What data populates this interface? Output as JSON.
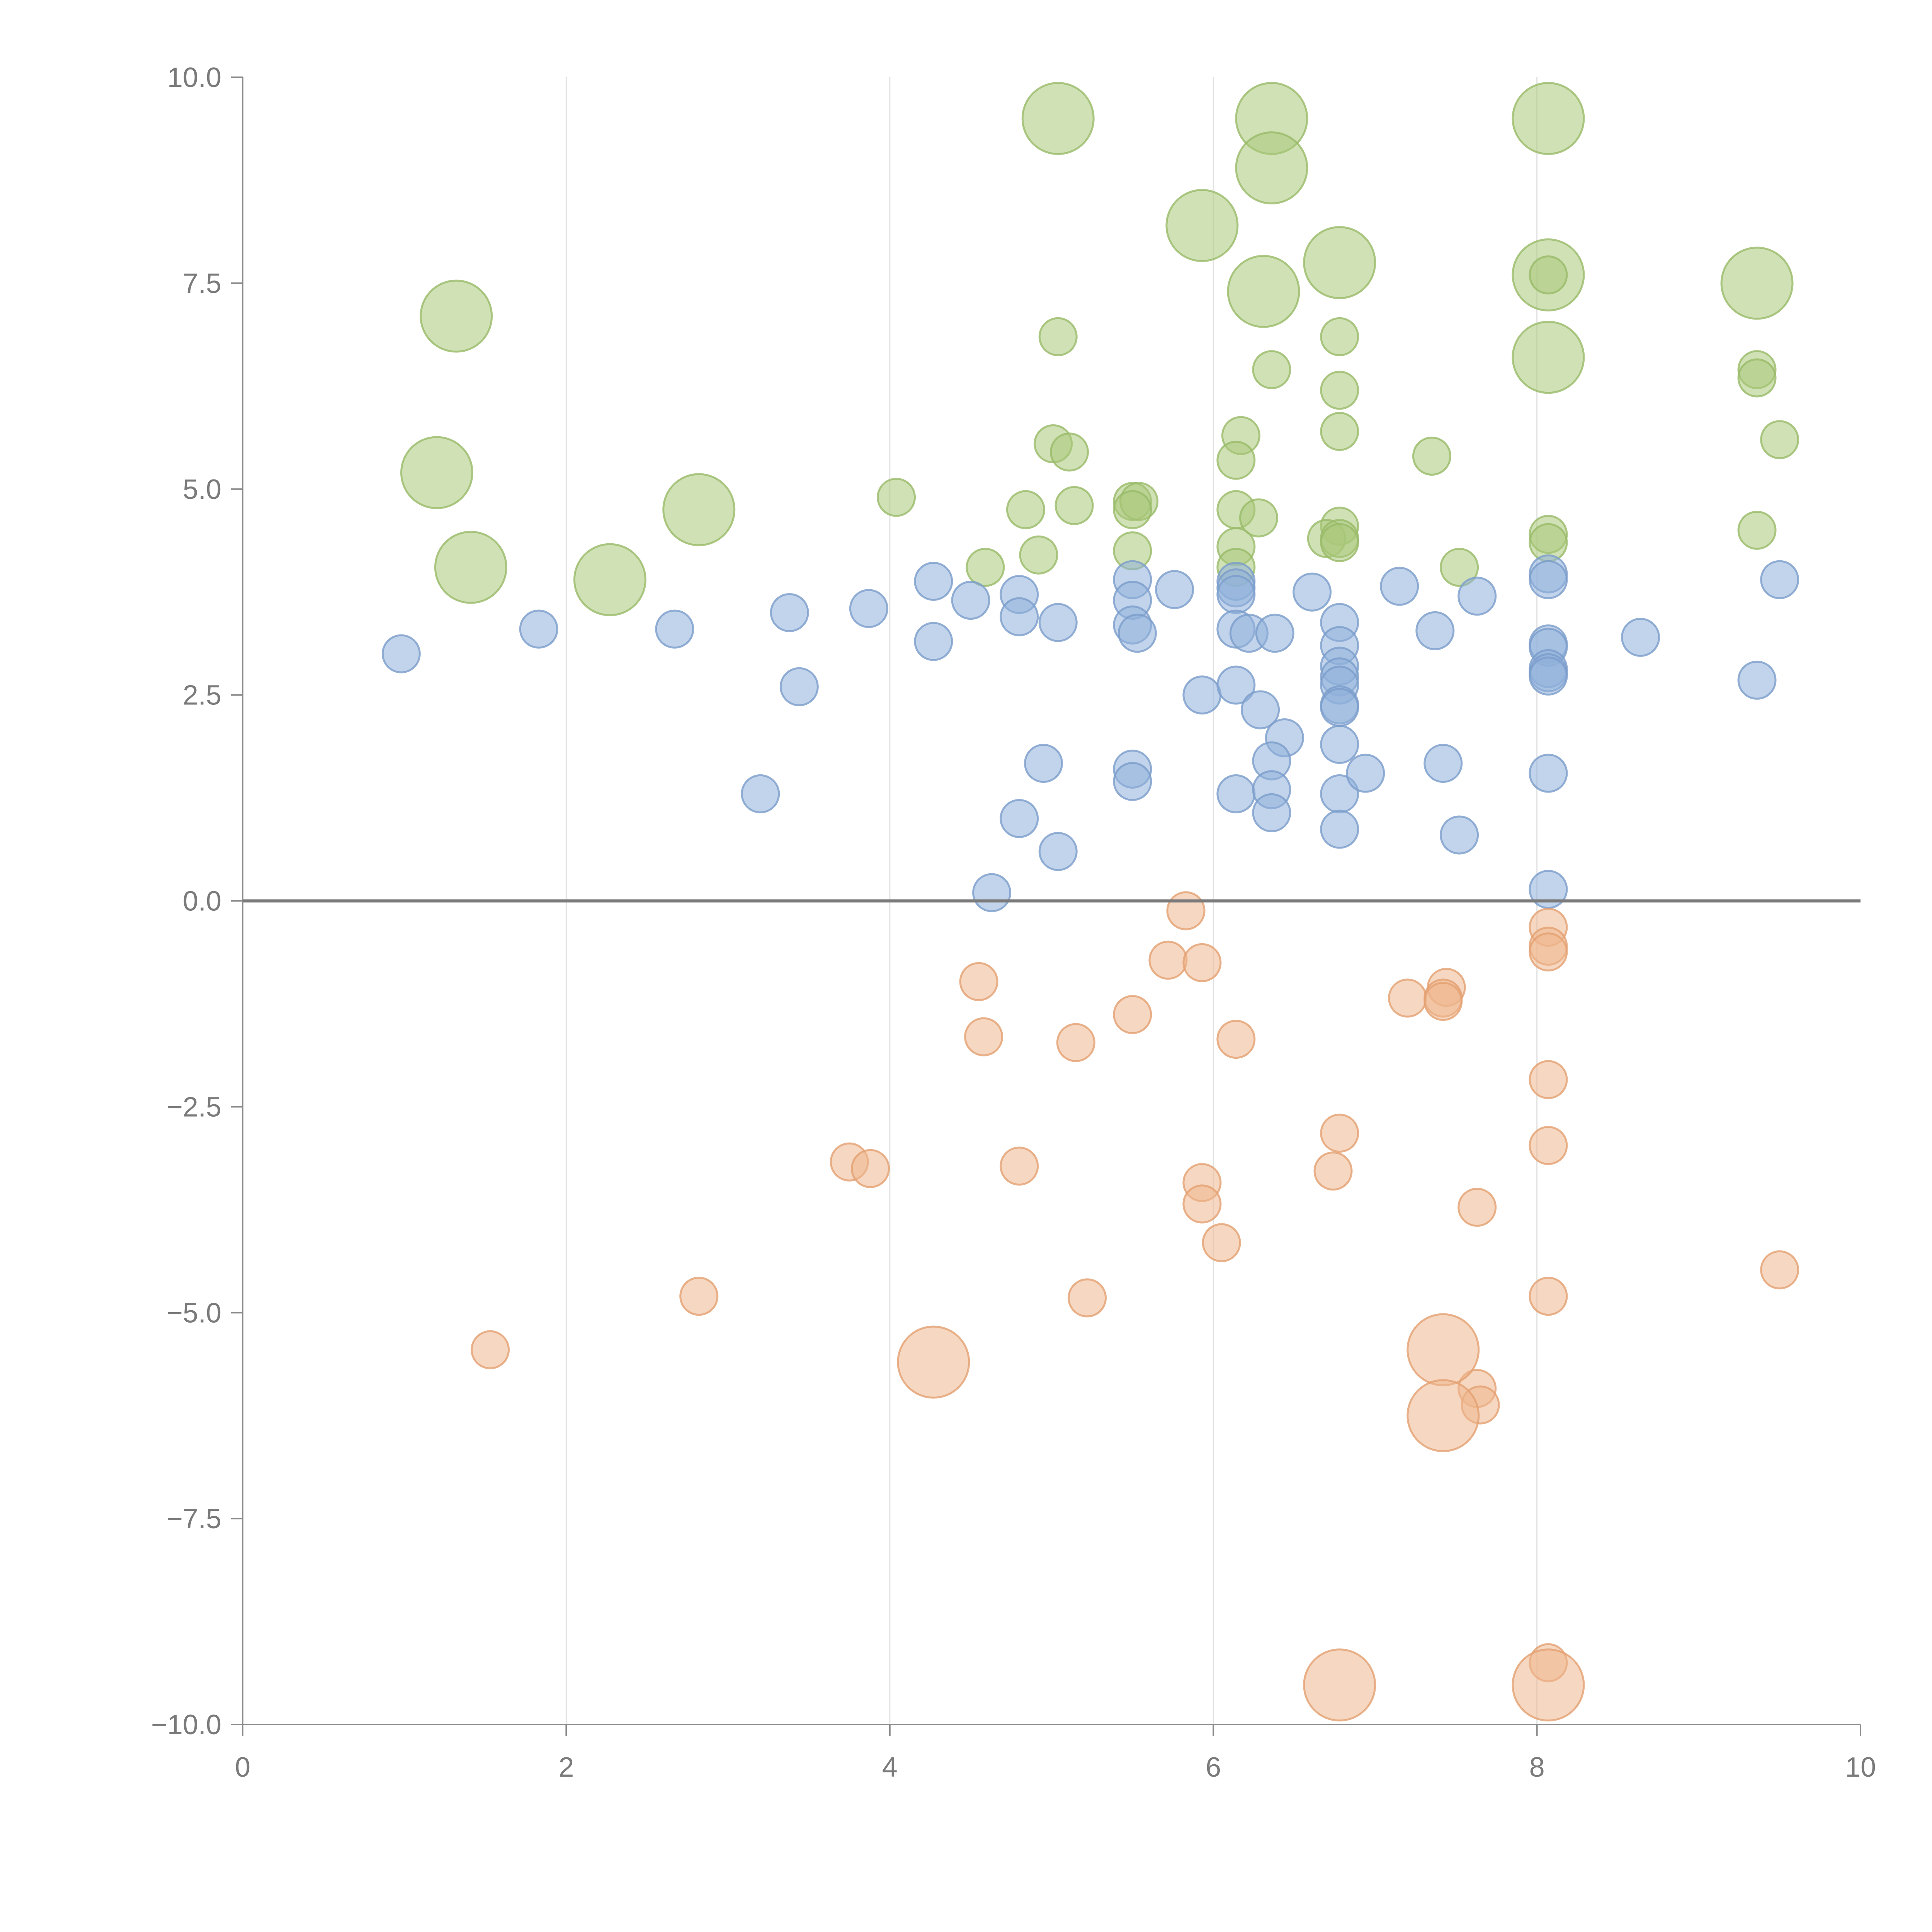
{
  "chart_data": {
    "type": "scatter",
    "title": "",
    "xlabel": "",
    "ylabel": "",
    "xlim": [
      0,
      10
    ],
    "ylim": [
      -10,
      10
    ],
    "grid": {
      "x": true,
      "y": false
    },
    "legend": null,
    "reference_line": {
      "y": 0
    },
    "x_ticks": [
      "0",
      "2",
      "4",
      "6",
      "8",
      "10"
    ],
    "x_tick_values": [
      0,
      2,
      4,
      6,
      8,
      10
    ],
    "y_ticks": [
      "10.0",
      "7.5",
      "5.0",
      "2.5",
      "0.0",
      "−2.5",
      "−5.0",
      "−7.5",
      "−10.0"
    ],
    "y_tick_values": [
      10,
      7.5,
      5,
      2.5,
      0,
      -2.5,
      -5,
      -7.5,
      -10
    ],
    "series": [
      {
        "name": "green",
        "color": "#a9c97a",
        "stroke": "#98ba68",
        "points": [
          {
            "x": 5.04,
            "y": 9.5,
            "size": "large"
          },
          {
            "x": 6.36,
            "y": 9.5,
            "size": "large"
          },
          {
            "x": 8.07,
            "y": 9.5,
            "size": "large"
          },
          {
            "x": 6.36,
            "y": 8.9,
            "size": "large"
          },
          {
            "x": 5.93,
            "y": 8.2,
            "size": "large"
          },
          {
            "x": 6.78,
            "y": 7.75,
            "size": "large"
          },
          {
            "x": 8.07,
            "y": 7.6,
            "size": "large"
          },
          {
            "x": 9.36,
            "y": 7.5,
            "size": "large"
          },
          {
            "x": 6.31,
            "y": 7.4,
            "size": "large"
          },
          {
            "x": 1.32,
            "y": 7.1,
            "size": "large"
          },
          {
            "x": 8.07,
            "y": 6.6,
            "size": "large"
          },
          {
            "x": 1.2,
            "y": 5.2,
            "size": "large"
          },
          {
            "x": 2.82,
            "y": 4.75,
            "size": "large"
          },
          {
            "x": 1.41,
            "y": 4.05,
            "size": "large"
          },
          {
            "x": 2.27,
            "y": 3.9,
            "size": "large"
          },
          {
            "x": 8.07,
            "y": 7.6,
            "size": "small"
          },
          {
            "x": 5.04,
            "y": 6.85,
            "size": "small"
          },
          {
            "x": 6.78,
            "y": 6.85,
            "size": "small"
          },
          {
            "x": 6.36,
            "y": 6.45,
            "size": "small"
          },
          {
            "x": 9.36,
            "y": 6.45,
            "size": "small"
          },
          {
            "x": 9.36,
            "y": 6.35,
            "size": "small"
          },
          {
            "x": 6.78,
            "y": 6.2,
            "size": "small"
          },
          {
            "x": 6.78,
            "y": 5.7,
            "size": "small"
          },
          {
            "x": 6.17,
            "y": 5.65,
            "size": "small"
          },
          {
            "x": 9.5,
            "y": 5.6,
            "size": "small"
          },
          {
            "x": 5.01,
            "y": 5.55,
            "size": "small"
          },
          {
            "x": 5.11,
            "y": 5.45,
            "size": "small"
          },
          {
            "x": 7.35,
            "y": 5.4,
            "size": "small"
          },
          {
            "x": 6.14,
            "y": 5.35,
            "size": "small"
          },
          {
            "x": 4.04,
            "y": 4.9,
            "size": "small"
          },
          {
            "x": 5.5,
            "y": 4.85,
            "size": "small"
          },
          {
            "x": 5.54,
            "y": 4.85,
            "size": "small"
          },
          {
            "x": 5.14,
            "y": 4.8,
            "size": "small"
          },
          {
            "x": 4.84,
            "y": 4.75,
            "size": "small"
          },
          {
            "x": 5.5,
            "y": 4.75,
            "size": "small"
          },
          {
            "x": 6.14,
            "y": 4.75,
            "size": "small"
          },
          {
            "x": 6.28,
            "y": 4.65,
            "size": "small"
          },
          {
            "x": 6.78,
            "y": 4.55,
            "size": "small"
          },
          {
            "x": 9.36,
            "y": 4.5,
            "size": "small"
          },
          {
            "x": 8.07,
            "y": 4.45,
            "size": "small"
          },
          {
            "x": 6.7,
            "y": 4.4,
            "size": "small"
          },
          {
            "x": 6.78,
            "y": 4.4,
            "size": "small"
          },
          {
            "x": 8.07,
            "y": 4.35,
            "size": "small"
          },
          {
            "x": 6.78,
            "y": 4.35,
            "size": "small"
          },
          {
            "x": 6.14,
            "y": 4.3,
            "size": "small"
          },
          {
            "x": 5.5,
            "y": 4.25,
            "size": "small"
          },
          {
            "x": 4.92,
            "y": 4.2,
            "size": "small"
          },
          {
            "x": 4.59,
            "y": 4.05,
            "size": "small"
          },
          {
            "x": 6.14,
            "y": 4.05,
            "size": "small"
          },
          {
            "x": 7.52,
            "y": 4.05,
            "size": "small"
          }
        ]
      },
      {
        "name": "blue",
        "color": "#8fb0da",
        "stroke": "#7a9ccb",
        "points": [
          {
            "x": 0.98,
            "y": 3.0
          },
          {
            "x": 1.83,
            "y": 3.3
          },
          {
            "x": 2.67,
            "y": 3.3
          },
          {
            "x": 3.38,
            "y": 3.5
          },
          {
            "x": 3.44,
            "y": 2.6
          },
          {
            "x": 3.2,
            "y": 1.3
          },
          {
            "x": 3.87,
            "y": 3.55
          },
          {
            "x": 4.27,
            "y": 3.88
          },
          {
            "x": 4.27,
            "y": 3.15
          },
          {
            "x": 4.5,
            "y": 3.65
          },
          {
            "x": 4.8,
            "y": 3.72
          },
          {
            "x": 4.8,
            "y": 3.45
          },
          {
            "x": 5.04,
            "y": 3.38
          },
          {
            "x": 4.95,
            "y": 1.67
          },
          {
            "x": 4.8,
            "y": 1.0
          },
          {
            "x": 5.04,
            "y": 0.6
          },
          {
            "x": 4.63,
            "y": 0.1
          },
          {
            "x": 5.5,
            "y": 3.9
          },
          {
            "x": 5.5,
            "y": 3.65
          },
          {
            "x": 5.5,
            "y": 3.35
          },
          {
            "x": 5.53,
            "y": 3.25
          },
          {
            "x": 5.5,
            "y": 1.6
          },
          {
            "x": 5.5,
            "y": 1.45
          },
          {
            "x": 5.76,
            "y": 3.78
          },
          {
            "x": 5.93,
            "y": 2.5
          },
          {
            "x": 6.14,
            "y": 3.88
          },
          {
            "x": 6.14,
            "y": 3.8
          },
          {
            "x": 6.14,
            "y": 3.72
          },
          {
            "x": 6.14,
            "y": 3.3
          },
          {
            "x": 6.22,
            "y": 3.25
          },
          {
            "x": 6.38,
            "y": 3.25
          },
          {
            "x": 6.14,
            "y": 2.62
          },
          {
            "x": 6.29,
            "y": 2.32
          },
          {
            "x": 6.44,
            "y": 1.98
          },
          {
            "x": 6.36,
            "y": 1.7
          },
          {
            "x": 6.14,
            "y": 1.3
          },
          {
            "x": 6.36,
            "y": 1.35
          },
          {
            "x": 6.36,
            "y": 1.07
          },
          {
            "x": 6.61,
            "y": 3.75
          },
          {
            "x": 6.78,
            "y": 3.38
          },
          {
            "x": 6.78,
            "y": 3.1
          },
          {
            "x": 6.78,
            "y": 2.85
          },
          {
            "x": 6.78,
            "y": 2.72
          },
          {
            "x": 6.78,
            "y": 2.62
          },
          {
            "x": 6.78,
            "y": 2.38
          },
          {
            "x": 6.78,
            "y": 2.35
          },
          {
            "x": 6.78,
            "y": 1.9
          },
          {
            "x": 6.78,
            "y": 1.3
          },
          {
            "x": 6.78,
            "y": 0.87
          },
          {
            "x": 6.94,
            "y": 1.55
          },
          {
            "x": 7.15,
            "y": 3.82
          },
          {
            "x": 7.37,
            "y": 3.28
          },
          {
            "x": 7.42,
            "y": 1.67
          },
          {
            "x": 7.52,
            "y": 0.8
          },
          {
            "x": 7.63,
            "y": 3.7
          },
          {
            "x": 8.07,
            "y": 3.97
          },
          {
            "x": 8.07,
            "y": 3.9
          },
          {
            "x": 8.07,
            "y": 3.12
          },
          {
            "x": 8.07,
            "y": 3.08
          },
          {
            "x": 8.07,
            "y": 2.82
          },
          {
            "x": 8.07,
            "y": 2.77
          },
          {
            "x": 8.07,
            "y": 2.73
          },
          {
            "x": 8.07,
            "y": 1.55
          },
          {
            "x": 8.07,
            "y": 0.14
          },
          {
            "x": 8.64,
            "y": 3.2
          },
          {
            "x": 9.36,
            "y": 2.68
          },
          {
            "x": 9.5,
            "y": 3.9
          }
        ]
      },
      {
        "name": "orange",
        "color": "#eeb78e",
        "stroke": "#e3a071",
        "points": [
          {
            "x": 5.83,
            "y": -0.12,
            "size": "small"
          },
          {
            "x": 5.72,
            "y": -0.72,
            "size": "small"
          },
          {
            "x": 5.93,
            "y": -0.75,
            "size": "small"
          },
          {
            "x": 4.55,
            "y": -0.98,
            "size": "small"
          },
          {
            "x": 5.5,
            "y": -1.38,
            "size": "small"
          },
          {
            "x": 4.58,
            "y": -1.65,
            "size": "small"
          },
          {
            "x": 5.15,
            "y": -1.72,
            "size": "small"
          },
          {
            "x": 6.14,
            "y": -1.68,
            "size": "small"
          },
          {
            "x": 7.2,
            "y": -1.18,
            "size": "small"
          },
          {
            "x": 7.44,
            "y": -1.05,
            "size": "small"
          },
          {
            "x": 7.42,
            "y": -1.18,
            "size": "small"
          },
          {
            "x": 7.42,
            "y": -1.22,
            "size": "small"
          },
          {
            "x": 8.07,
            "y": -0.32,
            "size": "small"
          },
          {
            "x": 8.07,
            "y": -0.55,
            "size": "small"
          },
          {
            "x": 8.07,
            "y": -0.62,
            "size": "small"
          },
          {
            "x": 8.07,
            "y": -2.17,
            "size": "small"
          },
          {
            "x": 8.07,
            "y": -2.97,
            "size": "small"
          },
          {
            "x": 6.78,
            "y": -2.82,
            "size": "small"
          },
          {
            "x": 6.74,
            "y": -3.28,
            "size": "small"
          },
          {
            "x": 3.75,
            "y": -3.17,
            "size": "small"
          },
          {
            "x": 3.88,
            "y": -3.25,
            "size": "small"
          },
          {
            "x": 4.8,
            "y": -3.22,
            "size": "small"
          },
          {
            "x": 5.93,
            "y": -3.42,
            "size": "small"
          },
          {
            "x": 5.93,
            "y": -3.68,
            "size": "small"
          },
          {
            "x": 6.05,
            "y": -4.15,
            "size": "small"
          },
          {
            "x": 7.63,
            "y": -3.72,
            "size": "small"
          },
          {
            "x": 2.82,
            "y": -4.8,
            "size": "small"
          },
          {
            "x": 5.22,
            "y": -4.82,
            "size": "small"
          },
          {
            "x": 1.53,
            "y": -5.45,
            "size": "small"
          },
          {
            "x": 8.07,
            "y": -4.8,
            "size": "small"
          },
          {
            "x": 9.5,
            "y": -4.48,
            "size": "small"
          },
          {
            "x": 7.63,
            "y": -5.92,
            "size": "small"
          },
          {
            "x": 7.65,
            "y": -6.12,
            "size": "small"
          },
          {
            "x": 8.07,
            "y": -9.25,
            "size": "small"
          },
          {
            "x": 4.27,
            "y": -5.6,
            "size": "large"
          },
          {
            "x": 7.42,
            "y": -5.45,
            "size": "large"
          },
          {
            "x": 7.42,
            "y": -6.25,
            "size": "large"
          },
          {
            "x": 6.78,
            "y": -9.52,
            "size": "large"
          },
          {
            "x": 8.07,
            "y": -9.52,
            "size": "large"
          }
        ]
      }
    ]
  },
  "style": {
    "axis_color": "#8a8a8a",
    "grid_color": "#e2e2e2",
    "tick_color": "#7a7a7a",
    "zero_line_color": "#7a7a7a",
    "background": "#ffffff"
  }
}
